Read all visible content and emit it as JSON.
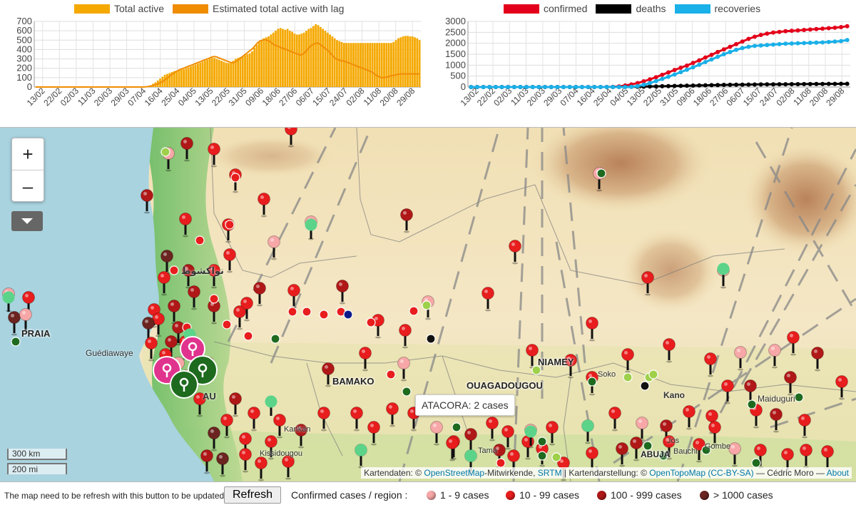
{
  "chart_data": [
    {
      "type": "bar",
      "title": "",
      "xlabel": "",
      "ylabel": "",
      "ylim": [
        0,
        700
      ],
      "y_ticks": [
        0,
        100,
        200,
        300,
        400,
        500,
        600,
        700
      ],
      "x_tick_labels": [
        "13/02",
        "22/02",
        "02/03",
        "11/03",
        "20/03",
        "29/03",
        "07/04",
        "16/04",
        "25/04",
        "04/05",
        "13/05",
        "22/05",
        "31/05",
        "09/06",
        "18/06",
        "27/06",
        "06/07",
        "15/07",
        "24/07",
        "02/08",
        "11/08",
        "20/08",
        "29/08"
      ],
      "grid": true,
      "legend_position": "top",
      "series": [
        {
          "name": "Total active",
          "kind": "bar",
          "color": "#f5a800",
          "values": [
            0,
            0,
            0,
            0,
            0,
            0,
            0,
            0,
            0,
            0,
            0,
            0,
            0,
            0,
            0,
            0,
            0,
            0,
            0,
            0,
            0,
            0,
            0,
            0,
            0,
            0,
            0,
            0,
            0,
            0,
            0,
            0,
            0,
            0,
            0,
            0,
            0,
            0,
            0,
            0,
            0,
            0,
            0,
            0,
            0,
            0,
            2,
            5,
            10,
            20,
            35,
            50,
            70,
            90,
            110,
            130,
            140,
            150,
            160,
            170,
            175,
            180,
            185,
            190,
            200,
            210,
            220,
            230,
            240,
            250,
            260,
            270,
            280,
            290,
            300,
            310,
            310,
            300,
            290,
            280,
            270,
            260,
            255,
            260,
            280,
            300,
            310,
            320,
            330,
            340,
            350,
            360,
            380,
            420,
            450,
            480,
            500,
            520,
            530,
            540,
            560,
            580,
            600,
            620,
            630,
            620,
            610,
            620,
            600,
            590,
            570,
            560,
            560,
            570,
            580,
            600,
            620,
            630,
            650,
            670,
            660,
            640,
            620,
            600,
            580,
            560,
            540,
            520,
            500,
            490,
            480,
            470,
            470,
            470,
            470,
            470,
            470,
            470,
            470,
            470,
            470,
            470,
            470,
            470,
            470,
            470,
            470,
            470,
            470,
            470,
            470,
            470,
            480,
            500,
            520,
            530,
            540,
            545,
            545,
            540,
            540,
            530,
            520,
            500
          ]
        },
        {
          "name": "Estimated total active with lag",
          "kind": "line",
          "color": "#f08c00",
          "values": [
            0,
            0,
            0,
            0,
            0,
            0,
            0,
            0,
            0,
            0,
            0,
            0,
            0,
            0,
            0,
            0,
            0,
            0,
            0,
            0,
            0,
            0,
            0,
            0,
            0,
            0,
            0,
            0,
            0,
            0,
            0,
            0,
            0,
            0,
            0,
            0,
            0,
            0,
            0,
            0,
            0,
            0,
            0,
            0,
            0,
            0,
            2,
            4,
            8,
            14,
            22,
            30,
            40,
            55,
            70,
            90,
            110,
            130,
            150,
            165,
            180,
            190,
            200,
            210,
            220,
            230,
            240,
            250,
            260,
            270,
            280,
            290,
            300,
            310,
            320,
            325,
            320,
            310,
            300,
            290,
            280,
            270,
            260,
            260,
            270,
            290,
            310,
            330,
            350,
            370,
            390,
            410,
            440,
            470,
            490,
            500,
            505,
            500,
            490,
            470,
            450,
            440,
            430,
            420,
            410,
            400,
            390,
            380,
            370,
            360,
            350,
            340,
            350,
            370,
            400,
            430,
            450,
            460,
            470,
            460,
            440,
            420,
            400,
            380,
            350,
            320,
            300,
            290,
            280,
            280,
            270,
            260,
            250,
            240,
            230,
            220,
            210,
            200,
            190,
            180,
            170,
            160,
            140,
            120,
            110,
            100,
            100,
            105,
            110,
            120,
            125,
            130,
            135,
            140,
            140,
            140,
            140,
            140,
            140,
            140,
            140,
            140
          ]
        }
      ]
    },
    {
      "type": "line",
      "title": "",
      "xlabel": "",
      "ylabel": "",
      "ylim": [
        0,
        3000
      ],
      "y_ticks": [
        0,
        500,
        1000,
        1500,
        2000,
        2500,
        3000
      ],
      "x_tick_labels": [
        "13/02",
        "22/02",
        "02/03",
        "11/03",
        "20/03",
        "29/03",
        "07/04",
        "16/04",
        "25/04",
        "04/05",
        "13/05",
        "22/05",
        "31/05",
        "09/06",
        "18/06",
        "27/06",
        "06/07",
        "15/07",
        "24/07",
        "02/08",
        "11/08",
        "20/08",
        "29/08"
      ],
      "grid": true,
      "legend_position": "top",
      "series": [
        {
          "name": "confirmed",
          "color": "#e3001b",
          "values": [
            0,
            0,
            0,
            0,
            0,
            0,
            0,
            0,
            0,
            0,
            0,
            0,
            0,
            0,
            0,
            0,
            0,
            0,
            0,
            0,
            0,
            0,
            2,
            10,
            30,
            70,
            120,
            180,
            260,
            350,
            450,
            560,
            670,
            780,
            880,
            980,
            1100,
            1220,
            1350,
            1470,
            1600,
            1720,
            1840,
            1960,
            2080,
            2200,
            2300,
            2380,
            2440,
            2490,
            2520,
            2550,
            2570,
            2590,
            2610,
            2630,
            2650,
            2670,
            2690,
            2710,
            2740,
            2780
          ]
        },
        {
          "name": "deaths",
          "color": "#000000",
          "values": [
            0,
            0,
            0,
            0,
            0,
            0,
            0,
            0,
            0,
            0,
            0,
            0,
            0,
            0,
            0,
            0,
            0,
            0,
            0,
            0,
            0,
            0,
            0,
            1,
            2,
            4,
            8,
            12,
            18,
            24,
            30,
            36,
            42,
            48,
            54,
            60,
            66,
            72,
            78,
            84,
            90,
            96,
            100,
            104,
            108,
            112,
            116,
            120,
            122,
            124,
            126,
            128,
            130,
            132,
            134,
            136,
            138,
            140,
            142,
            144,
            146,
            148
          ]
        },
        {
          "name": "recoveries",
          "color": "#1ab0e8",
          "values": [
            0,
            0,
            0,
            0,
            0,
            0,
            0,
            0,
            0,
            0,
            0,
            0,
            0,
            0,
            0,
            0,
            0,
            0,
            0,
            0,
            0,
            0,
            0,
            0,
            0,
            0,
            10,
            40,
            100,
            180,
            270,
            370,
            470,
            570,
            680,
            790,
            900,
            1020,
            1140,
            1260,
            1380,
            1500,
            1600,
            1700,
            1780,
            1840,
            1880,
            1900,
            1920,
            1940,
            1960,
            1980,
            1990,
            2000,
            2010,
            2020,
            2030,
            2040,
            2060,
            2080,
            2100,
            2150
          ]
        }
      ]
    }
  ],
  "map": {
    "zoom_in": "+",
    "zoom_out": "–",
    "scale_km": "300 km",
    "scale_mi": "200 mi",
    "tooltip": "ATACORA: 2 cases",
    "attribution": {
      "prefix": "Kartendaten: ©",
      "osm": "OpenStreetMap",
      "osm_suffix": "-Mitwirkende,",
      "srtm": "SRTM",
      "mid": "| Kartendarstellung: ©",
      "otm": "OpenTopoMap",
      "license": "(CC-BY-SA)",
      "author": "— Cédric Moro —",
      "about": "About"
    },
    "labels": {
      "praia": "PRAIA",
      "guediawaye": "Guédiawaye",
      "bamako": "BAMAKO",
      "niamey": "NIAMEY",
      "ouagadougou": "OUAGADOUGOU",
      "kano": "Kano",
      "maiduguri": "Maiduguri",
      "kankan": "Kankan",
      "kissidougou": "Kissidougou",
      "bauchi": "Bauchi",
      "gombe": "Gombe",
      "jos": "Jos",
      "abuja": "ABUJA",
      "sokoto": "Soko",
      "tamale": "Tama",
      "nouakchott": "نواكشوط",
      "bissau": "AU"
    }
  },
  "footer": {
    "note": "The map need to be refresh with this button to be updated:",
    "refresh": "Refresh",
    "confirmed_label": "Confirmed cases / region :",
    "legend": [
      "1 - 9 cases",
      "10 - 99 cases",
      "100 - 999 cases",
      "> 1000 cases"
    ],
    "legend_colors": [
      "#f7a7a7",
      "#e81d1d",
      "#b01818",
      "#6b2420"
    ]
  }
}
